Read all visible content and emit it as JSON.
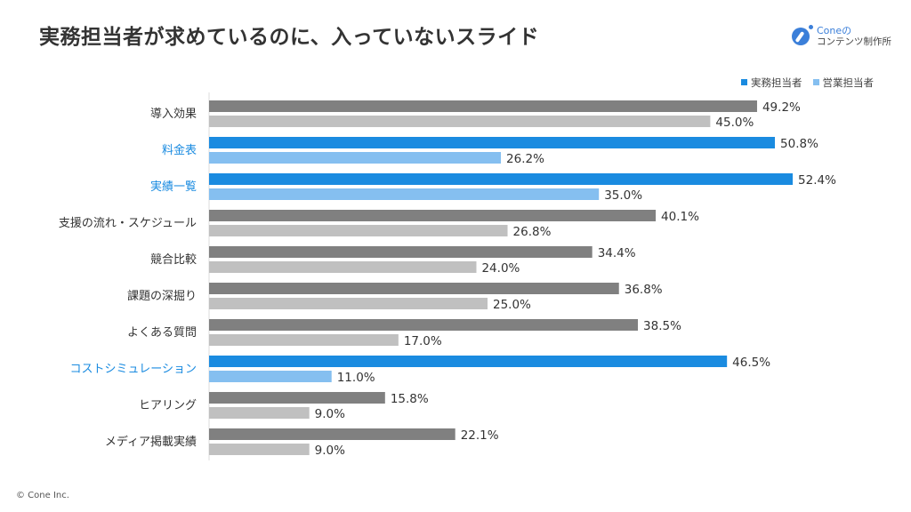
{
  "title": "実務担当者が求めているのに、入っていないスライド",
  "logo": {
    "line1": "Coneの",
    "line2": "コンテンツ制作所"
  },
  "footer": "© Cone Inc.",
  "colors": {
    "primary_dark": "#808080",
    "primary_light": "#c0c0c0",
    "highlight_dark": "#1a8be0",
    "highlight_light": "#85bff0",
    "highlight_label": "#1a8be0",
    "label": "#333333"
  },
  "chart_data": {
    "type": "bar",
    "orientation": "horizontal",
    "title": "実務担当者が求めているのに、入っていないスライド",
    "categories": [
      "導入効果",
      "料金表",
      "実績一覧",
      "支援の流れ・スケジュール",
      "競合比較",
      "課題の深掘り",
      "よくある質問",
      "コストシミュレーション",
      "ヒアリング",
      "メディア掲載実績"
    ],
    "highlighted": [
      false,
      true,
      true,
      false,
      false,
      false,
      false,
      true,
      false,
      false
    ],
    "series": [
      {
        "name": "実務担当者",
        "values": [
          49.2,
          50.8,
          52.4,
          40.1,
          34.4,
          36.8,
          38.5,
          46.5,
          15.8,
          22.1
        ]
      },
      {
        "name": "営業担当者",
        "values": [
          45.0,
          26.2,
          35.0,
          26.8,
          24.0,
          25.0,
          17.0,
          11.0,
          9.0,
          9.0
        ]
      }
    ],
    "value_format": "%",
    "legend": "top-right",
    "grid": false
  }
}
